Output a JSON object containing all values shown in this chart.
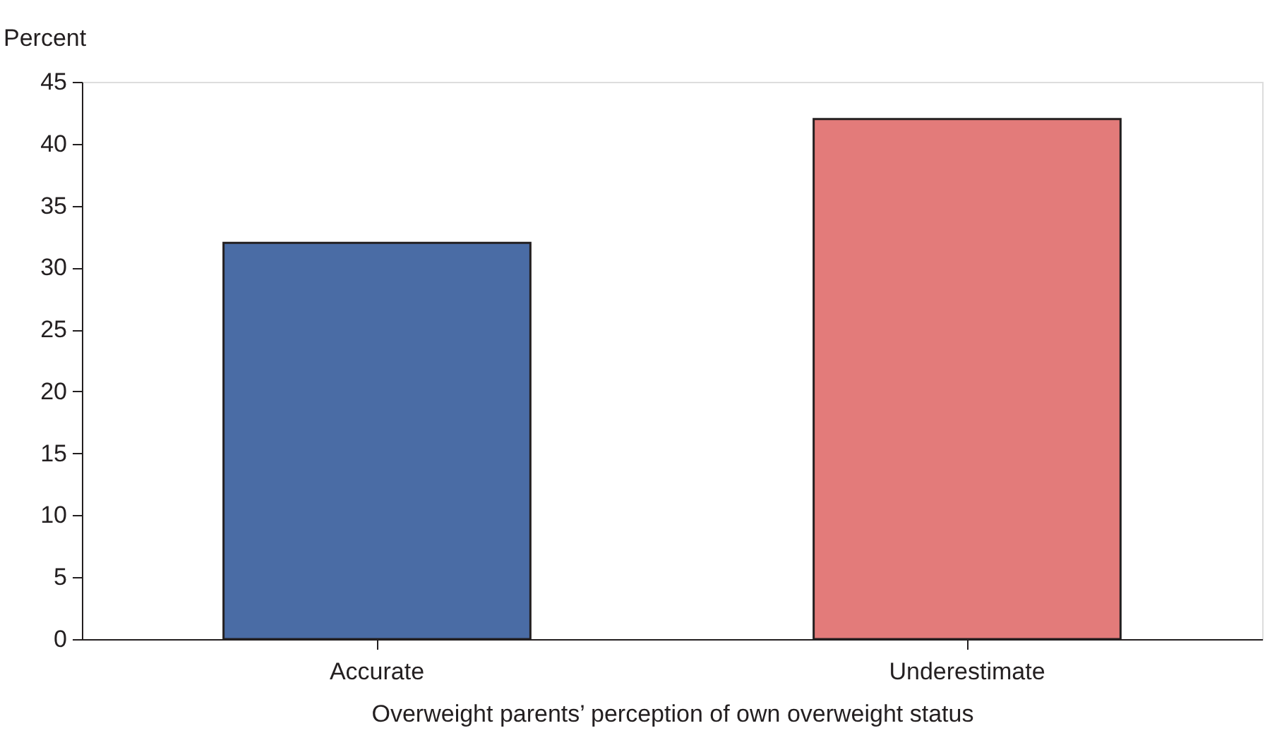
{
  "chart_data": {
    "type": "bar",
    "xlabel": "Overweight parents’ perception of own overweight status",
    "ylabel": "Percent",
    "categories": [
      "Accurate",
      "Underestimate"
    ],
    "values": [
      32,
      42
    ],
    "colors": [
      "#4a6ca5",
      "#e37b7a"
    ],
    "ylim": [
      0,
      45
    ],
    "yticks": [
      0,
      5,
      10,
      15,
      20,
      25,
      30,
      35,
      40,
      45
    ],
    "grid": false
  }
}
